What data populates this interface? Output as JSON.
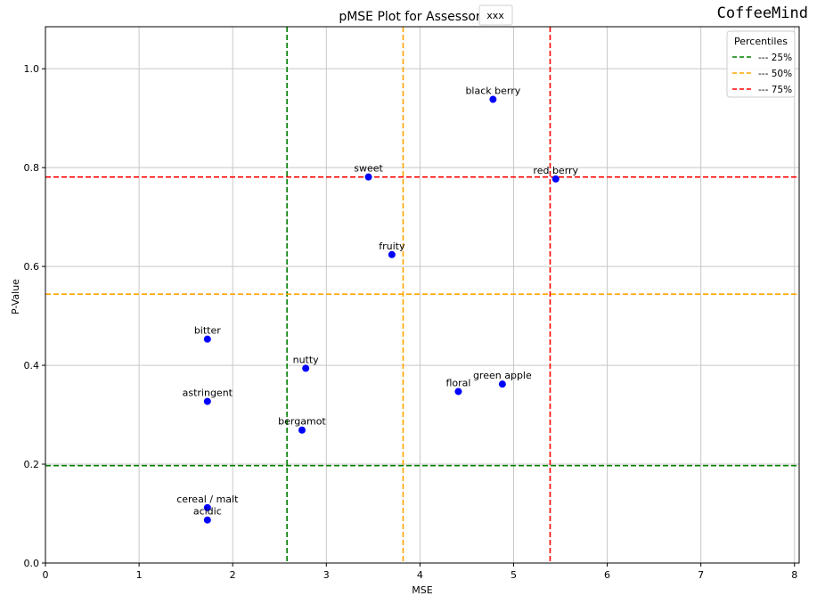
{
  "chart_data": {
    "type": "scatter",
    "title": "pMSE Plot for Assessor",
    "title_tag": "xxx",
    "brand": "CoffeeMind",
    "xlabel": "MSE",
    "ylabel": "P-Value",
    "xlim": [
      0,
      8.05
    ],
    "ylim": [
      0,
      1.085
    ],
    "xticks": [
      0,
      1,
      2,
      3,
      4,
      5,
      6,
      7,
      8
    ],
    "yticks": [
      0.0,
      0.2,
      0.4,
      0.6,
      0.8,
      1.0
    ],
    "ytick_labels": [
      "0.0",
      "0.2",
      "0.4",
      "0.6",
      "0.8",
      "1.0"
    ],
    "grid": true,
    "point_color": "#0000ff",
    "points": [
      {
        "label": "black berry",
        "x": 4.78,
        "y": 0.938
      },
      {
        "label": "sweet",
        "x": 3.45,
        "y": 0.781
      },
      {
        "label": "red berry",
        "x": 5.45,
        "y": 0.777
      },
      {
        "label": "fruity",
        "x": 3.7,
        "y": 0.624
      },
      {
        "label": "bitter",
        "x": 1.73,
        "y": 0.453
      },
      {
        "label": "nutty",
        "x": 2.78,
        "y": 0.394
      },
      {
        "label": "green apple",
        "x": 4.88,
        "y": 0.362
      },
      {
        "label": "floral",
        "x": 4.41,
        "y": 0.347
      },
      {
        "label": "astringent",
        "x": 1.73,
        "y": 0.327
      },
      {
        "label": "bergamot",
        "x": 2.74,
        "y": 0.269
      },
      {
        "label": "cereal / malt",
        "x": 1.73,
        "y": 0.112
      },
      {
        "label": "acidic",
        "x": 1.73,
        "y": 0.087
      }
    ],
    "legend": {
      "title": "Percentiles",
      "placement": "top-right",
      "entries": [
        {
          "label": "--- 25%",
          "color": "#008000"
        },
        {
          "label": "--- 50%",
          "color": "#ffa500"
        },
        {
          "label": "--- 75%",
          "color": "#ff0000"
        }
      ]
    },
    "percentile_lines": {
      "vertical": [
        {
          "x": 2.58,
          "color": "#008000"
        },
        {
          "x": 3.82,
          "color": "#ffa500"
        },
        {
          "x": 5.39,
          "color": "#ff0000"
        }
      ],
      "horizontal": [
        {
          "y": 0.197,
          "color": "#008000"
        },
        {
          "y": 0.544,
          "color": "#ffa500"
        },
        {
          "y": 0.781,
          "color": "#ff0000"
        }
      ]
    }
  }
}
